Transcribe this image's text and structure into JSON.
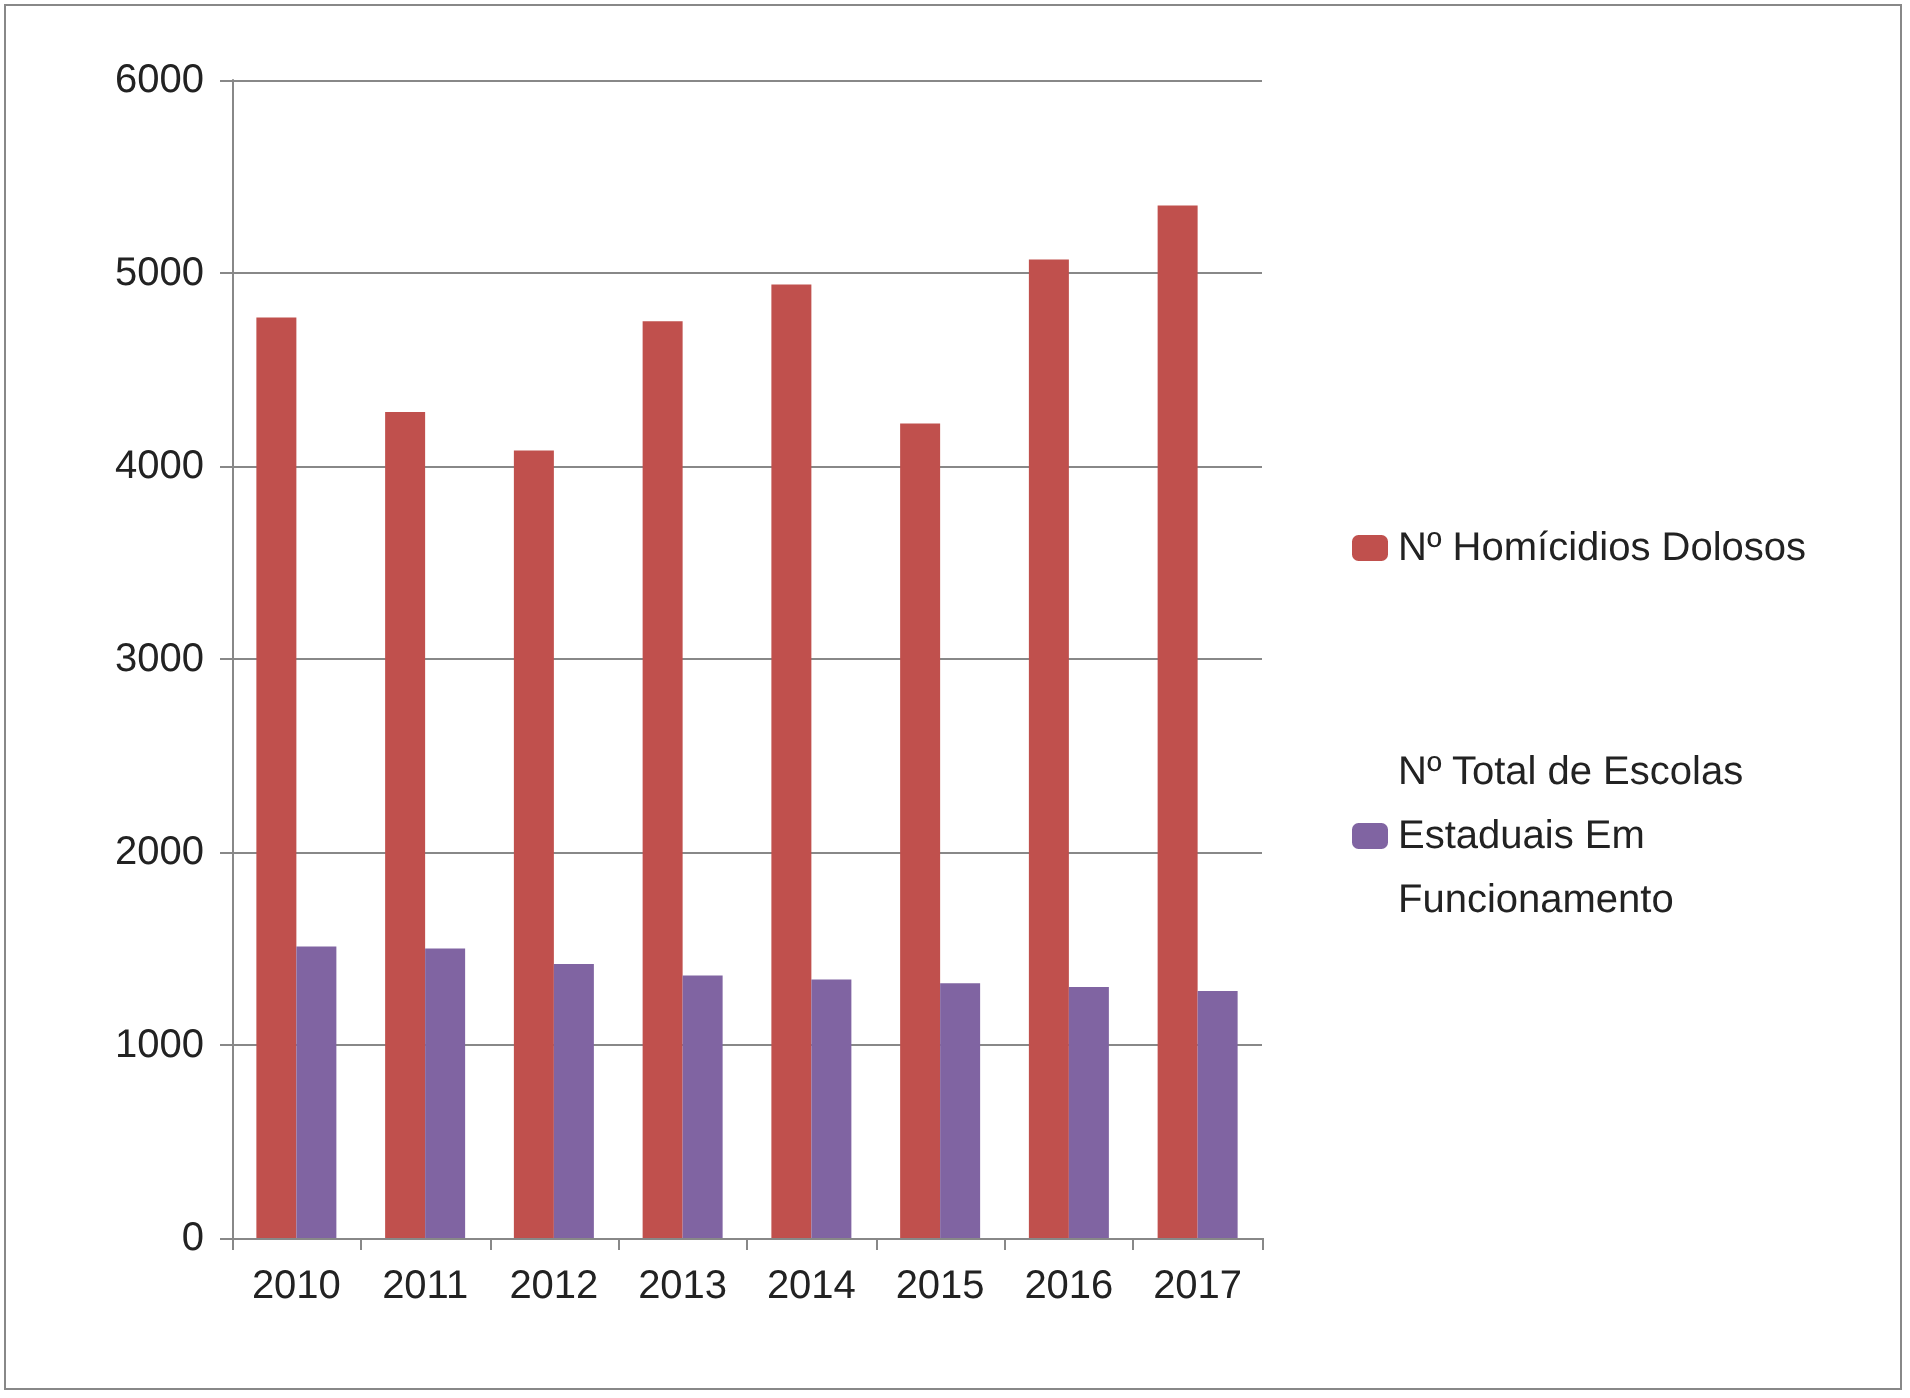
{
  "chart_data": {
    "type": "bar",
    "categories": [
      "2010",
      "2011",
      "2012",
      "2013",
      "2014",
      "2015",
      "2016",
      "2017"
    ],
    "series": [
      {
        "name": "Nº Homícidios Dolosos",
        "color": "#c0504d",
        "values": [
          4770,
          4280,
          4080,
          4750,
          4940,
          4220,
          5070,
          5350
        ]
      },
      {
        "name": "Nº Total de Escolas Estaduais Em Funcionamento",
        "color": "#8064a2",
        "values": [
          1510,
          1500,
          1420,
          1360,
          1340,
          1320,
          1300,
          1280
        ]
      }
    ],
    "ylim": [
      0,
      6000
    ],
    "yticks": [
      0,
      1000,
      2000,
      3000,
      4000,
      5000,
      6000
    ],
    "grid": "y",
    "legend": "right"
  }
}
